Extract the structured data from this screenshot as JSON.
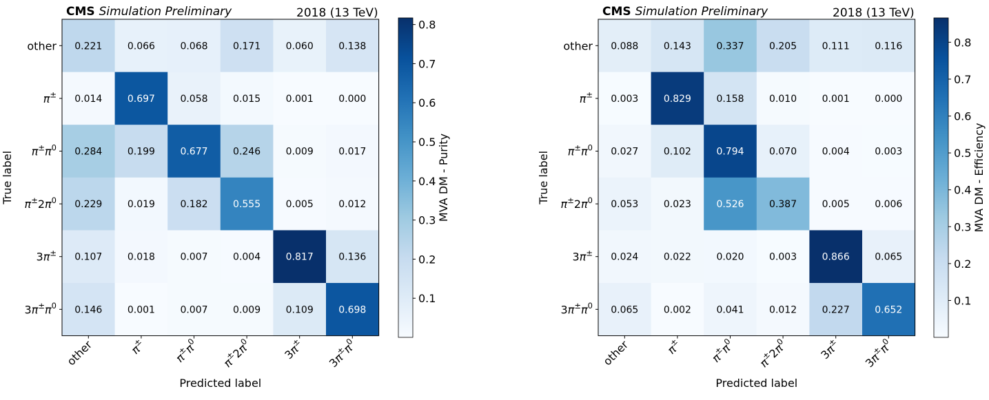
{
  "chart_data": [
    {
      "type": "heatmap",
      "header": {
        "experiment": "CMS",
        "status": "Simulation Preliminary",
        "energy": "2018 (13 TeV)"
      },
      "xlabel": "Predicted label",
      "ylabel": "True label",
      "x_categories": [
        "other",
        "π±",
        "π±π0",
        "π±2π0",
        "3π±",
        "3π±π0"
      ],
      "y_categories": [
        "other",
        "π±",
        "π±π0",
        "π±2π0",
        "3π±",
        "3π±π0"
      ],
      "values": [
        [
          0.221,
          0.066,
          0.068,
          0.171,
          0.06,
          0.138
        ],
        [
          0.014,
          0.697,
          0.058,
          0.015,
          0.001,
          0.0
        ],
        [
          0.284,
          0.199,
          0.677,
          0.246,
          0.009,
          0.017
        ],
        [
          0.229,
          0.019,
          0.182,
          0.555,
          0.005,
          0.012
        ],
        [
          0.107,
          0.018,
          0.007,
          0.004,
          0.817,
          0.136
        ],
        [
          0.146,
          0.001,
          0.007,
          0.009,
          0.109,
          0.698
        ]
      ],
      "colorbar": {
        "label": "MVA DM - Purity",
        "range": [
          0.0,
          0.817
        ],
        "ticks": [
          "0.1",
          "0.2",
          "0.3",
          "0.4",
          "0.5",
          "0.6",
          "0.7",
          "0.8"
        ],
        "colormap": "Blues"
      }
    },
    {
      "type": "heatmap",
      "header": {
        "experiment": "CMS",
        "status": "Simulation Preliminary",
        "energy": "2018 (13 TeV)"
      },
      "xlabel": "Predicted label",
      "ylabel": "True label",
      "x_categories": [
        "other",
        "π±",
        "π±π0",
        "π±2π0",
        "3π±",
        "3π±π0"
      ],
      "y_categories": [
        "other",
        "π±",
        "π±π0",
        "π±2π0",
        "3π±",
        "3π±π0"
      ],
      "values": [
        [
          0.088,
          0.143,
          0.337,
          0.205,
          0.111,
          0.116
        ],
        [
          0.003,
          0.829,
          0.158,
          0.01,
          0.001,
          0.0
        ],
        [
          0.027,
          0.102,
          0.794,
          0.07,
          0.004,
          0.003
        ],
        [
          0.053,
          0.023,
          0.526,
          0.387,
          0.005,
          0.006
        ],
        [
          0.024,
          0.022,
          0.02,
          0.003,
          0.866,
          0.065
        ],
        [
          0.065,
          0.002,
          0.041,
          0.012,
          0.227,
          0.652
        ]
      ],
      "colorbar": {
        "label": "MVA DM - Efficiency",
        "range": [
          0.0,
          0.866
        ],
        "ticks": [
          "0.1",
          "0.2",
          "0.3",
          "0.4",
          "0.5",
          "0.6",
          "0.7",
          "0.8"
        ],
        "colormap": "Blues"
      }
    }
  ]
}
